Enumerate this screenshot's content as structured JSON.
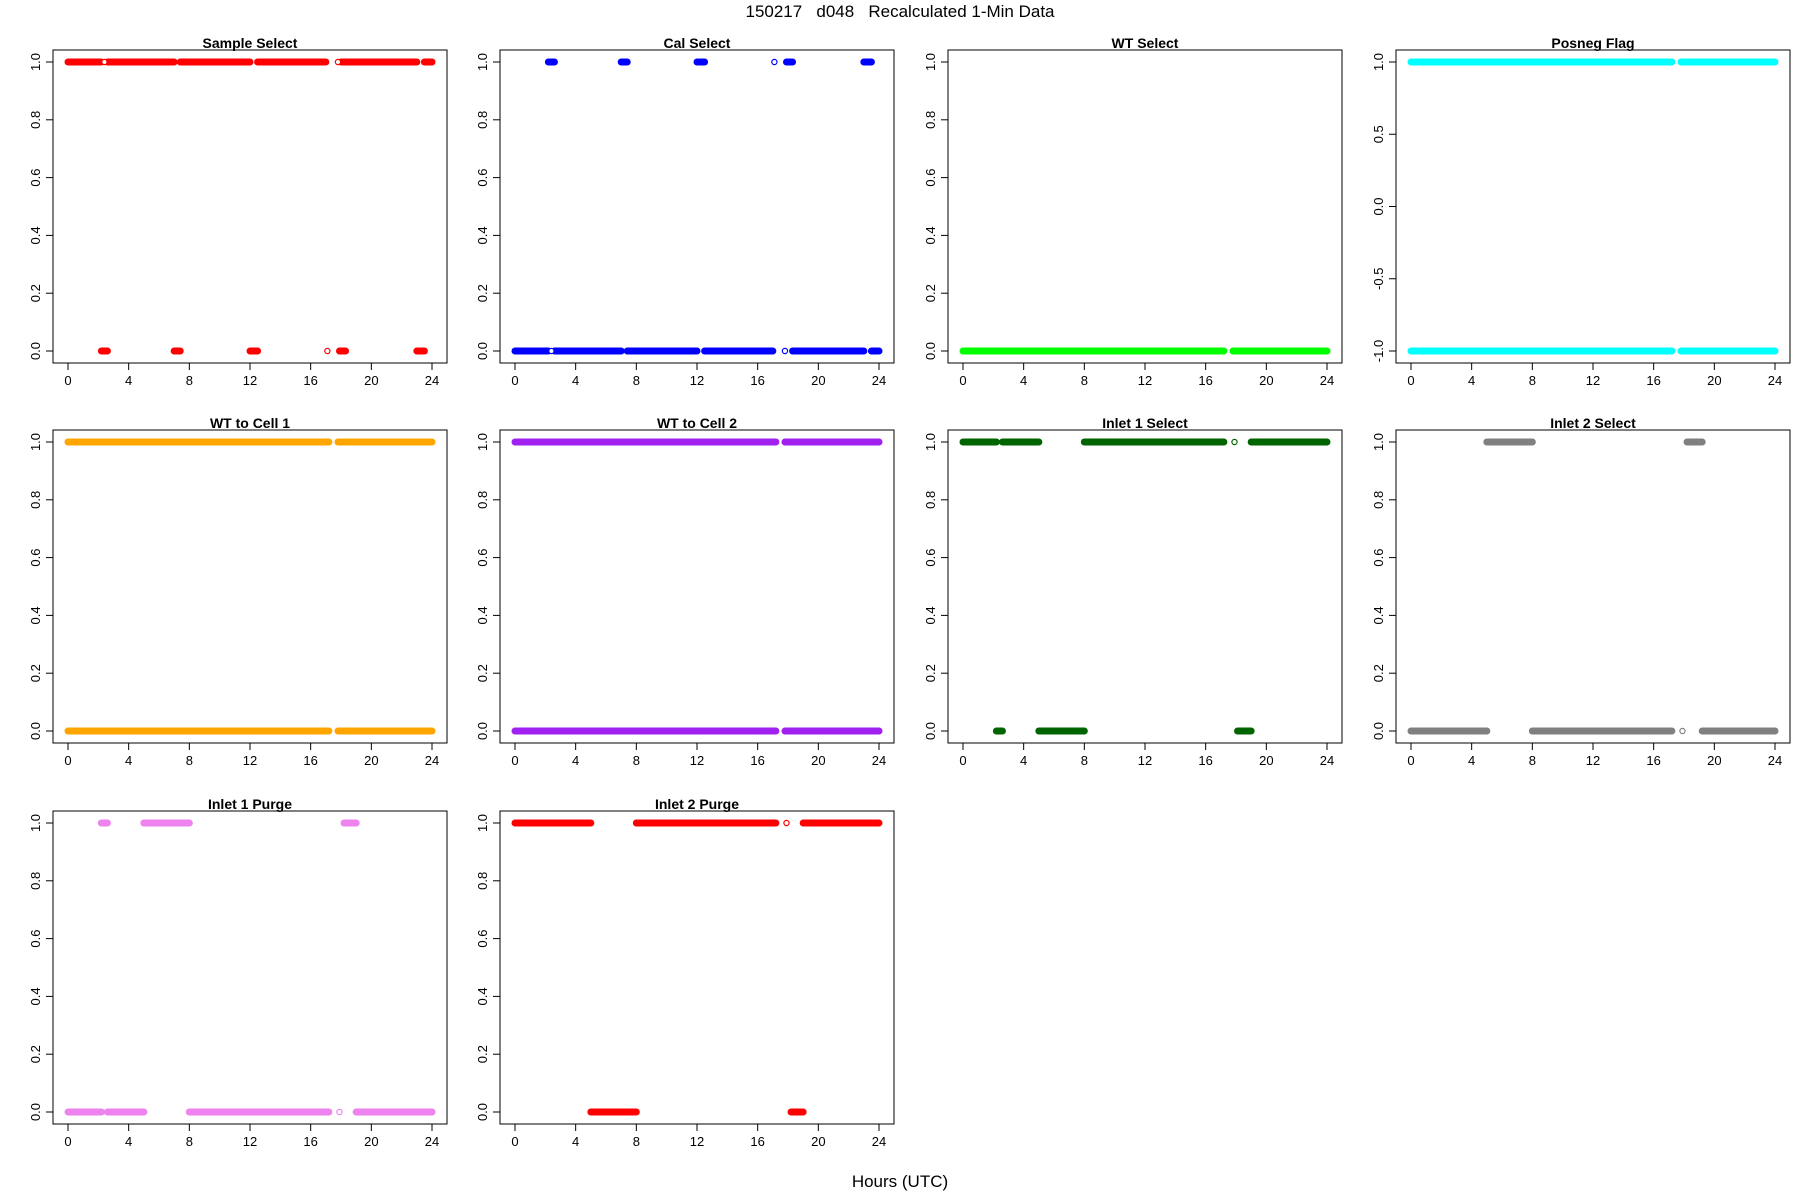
{
  "header": {
    "title": "150217   d048   Recalculated 1-Min Data"
  },
  "xaxis": {
    "title": "Hours (UTC)"
  },
  "chart_data": [
    {
      "title": "Sample Select",
      "type": "scatter",
      "color": "#ff0000",
      "xlim": [
        0,
        24
      ],
      "ylim": [
        0,
        1
      ],
      "x_ticks": [
        0,
        4,
        8,
        12,
        16,
        20,
        24
      ],
      "y_ticks": [
        "0.0",
        "0.2",
        "0.4",
        "0.6",
        "0.8",
        "1.0"
      ],
      "segments": [
        {
          "y": 1,
          "x": [
            [
              0.0,
              2.2
            ],
            [
              2.6,
              7.0
            ],
            [
              7.4,
              12.0
            ],
            [
              12.5,
              17.0
            ],
            [
              18.0,
              23.0
            ],
            [
              23.5,
              24.0
            ]
          ]
        },
        {
          "y": 0,
          "x": [
            [
              2.2,
              2.6
            ],
            [
              7.0,
              7.4
            ],
            [
              12.0,
              12.5
            ],
            [
              17.9,
              18.3
            ],
            [
              23.0,
              23.5
            ]
          ]
        }
      ],
      "open_points": [
        {
          "x": 2.4,
          "y": 1
        },
        {
          "x": 17.1,
          "y": 0
        },
        {
          "x": 17.8,
          "y": 1
        }
      ]
    },
    {
      "title": "Cal Select",
      "type": "scatter",
      "color": "#0000ff",
      "xlim": [
        0,
        24
      ],
      "ylim": [
        0,
        1
      ],
      "x_ticks": [
        0,
        4,
        8,
        12,
        16,
        20,
        24
      ],
      "y_ticks": [
        "0.0",
        "0.2",
        "0.4",
        "0.6",
        "0.8",
        "1.0"
      ],
      "segments": [
        {
          "y": 1,
          "x": [
            [
              2.2,
              2.6
            ],
            [
              7.0,
              7.4
            ],
            [
              12.0,
              12.5
            ],
            [
              17.9,
              18.3
            ],
            [
              23.0,
              23.5
            ]
          ]
        },
        {
          "y": 0,
          "x": [
            [
              0.0,
              2.2
            ],
            [
              2.6,
              7.0
            ],
            [
              7.4,
              12.0
            ],
            [
              12.5,
              17.0
            ],
            [
              18.3,
              23.0
            ],
            [
              23.5,
              24.0
            ]
          ]
        }
      ],
      "open_points": [
        {
          "x": 2.4,
          "y": 0
        },
        {
          "x": 17.1,
          "y": 1
        },
        {
          "x": 17.8,
          "y": 0
        }
      ]
    },
    {
      "title": "WT Select",
      "type": "scatter",
      "color": "#00ff00",
      "xlim": [
        0,
        24
      ],
      "ylim": [
        0,
        1
      ],
      "x_ticks": [
        0,
        4,
        8,
        12,
        16,
        20,
        24
      ],
      "y_ticks": [
        "0.0",
        "0.2",
        "0.4",
        "0.6",
        "0.8",
        "1.0"
      ],
      "segments": [
        {
          "y": 0,
          "x": [
            [
              0.0,
              17.2
            ],
            [
              17.8,
              24.0
            ]
          ]
        }
      ],
      "open_points": []
    },
    {
      "title": "Posneg Flag",
      "type": "scatter",
      "color": "#00ffff",
      "xlim": [
        0,
        24
      ],
      "ylim": [
        -1,
        1
      ],
      "x_ticks": [
        0,
        4,
        8,
        12,
        16,
        20,
        24
      ],
      "y_ticks": [
        "-1.0",
        "-0.5",
        "0.0",
        "0.5",
        "1.0"
      ],
      "segments": [
        {
          "y": 1,
          "x": [
            [
              0.0,
              17.2
            ],
            [
              17.8,
              24.0
            ]
          ]
        },
        {
          "y": -1,
          "x": [
            [
              0.0,
              17.2
            ],
            [
              17.8,
              24.0
            ]
          ]
        }
      ],
      "open_points": []
    },
    {
      "title": "WT to Cell 1",
      "type": "scatter",
      "color": "#ffa500",
      "xlim": [
        0,
        24
      ],
      "ylim": [
        0,
        1
      ],
      "x_ticks": [
        0,
        4,
        8,
        12,
        16,
        20,
        24
      ],
      "y_ticks": [
        "0.0",
        "0.2",
        "0.4",
        "0.6",
        "0.8",
        "1.0"
      ],
      "segments": [
        {
          "y": 1,
          "x": [
            [
              0.0,
              17.2
            ],
            [
              17.8,
              24.0
            ]
          ]
        },
        {
          "y": 0,
          "x": [
            [
              0.0,
              17.2
            ],
            [
              17.8,
              24.0
            ]
          ]
        }
      ],
      "open_points": []
    },
    {
      "title": "WT to Cell 2",
      "type": "scatter",
      "color": "#a020f0",
      "xlim": [
        0,
        24
      ],
      "ylim": [
        0,
        1
      ],
      "x_ticks": [
        0,
        4,
        8,
        12,
        16,
        20,
        24
      ],
      "y_ticks": [
        "0.0",
        "0.2",
        "0.4",
        "0.6",
        "0.8",
        "1.0"
      ],
      "segments": [
        {
          "y": 1,
          "x": [
            [
              0.0,
              17.2
            ],
            [
              17.8,
              24.0
            ]
          ]
        },
        {
          "y": 0,
          "x": [
            [
              0.0,
              17.2
            ],
            [
              17.8,
              24.0
            ]
          ]
        }
      ],
      "open_points": []
    },
    {
      "title": "Inlet 1 Select",
      "type": "scatter",
      "color": "#006400",
      "xlim": [
        0,
        24
      ],
      "ylim": [
        0,
        1
      ],
      "x_ticks": [
        0,
        4,
        8,
        12,
        16,
        20,
        24
      ],
      "y_ticks": [
        "0.0",
        "0.2",
        "0.4",
        "0.6",
        "0.8",
        "1.0"
      ],
      "segments": [
        {
          "y": 1,
          "x": [
            [
              0.0,
              2.2
            ],
            [
              2.6,
              5.0
            ],
            [
              8.0,
              17.2
            ],
            [
              19.0,
              24.0
            ]
          ]
        },
        {
          "y": 0,
          "x": [
            [
              2.2,
              2.6
            ],
            [
              5.0,
              8.0
            ],
            [
              18.1,
              19.0
            ]
          ]
        }
      ],
      "open_points": [
        {
          "x": 17.9,
          "y": 1
        }
      ]
    },
    {
      "title": "Inlet 2 Select",
      "type": "scatter",
      "color": "#808080",
      "xlim": [
        0,
        24
      ],
      "ylim": [
        0,
        1
      ],
      "x_ticks": [
        0,
        4,
        8,
        12,
        16,
        20,
        24
      ],
      "y_ticks": [
        "0.0",
        "0.2",
        "0.4",
        "0.6",
        "0.8",
        "1.0"
      ],
      "segments": [
        {
          "y": 1,
          "x": [
            [
              5.0,
              8.0
            ],
            [
              18.2,
              19.2
            ]
          ]
        },
        {
          "y": 0,
          "x": [
            [
              0.0,
              5.0
            ],
            [
              8.0,
              17.2
            ],
            [
              19.2,
              24.0
            ]
          ]
        }
      ],
      "open_points": [
        {
          "x": 17.9,
          "y": 0
        }
      ]
    },
    {
      "title": "Inlet 1 Purge",
      "type": "scatter",
      "color": "#ee82ee",
      "xlim": [
        0,
        24
      ],
      "ylim": [
        0,
        1
      ],
      "x_ticks": [
        0,
        4,
        8,
        12,
        16,
        20,
        24
      ],
      "y_ticks": [
        "0.0",
        "0.2",
        "0.4",
        "0.6",
        "0.8",
        "1.0"
      ],
      "segments": [
        {
          "y": 1,
          "x": [
            [
              2.2,
              2.6
            ],
            [
              5.0,
              8.0
            ],
            [
              18.2,
              19.0
            ]
          ]
        },
        {
          "y": 0,
          "x": [
            [
              0.0,
              2.2
            ],
            [
              2.6,
              5.0
            ],
            [
              8.0,
              17.2
            ],
            [
              19.0,
              24.0
            ]
          ]
        }
      ],
      "open_points": [
        {
          "x": 17.9,
          "y": 0
        }
      ]
    },
    {
      "title": "Inlet 2 Purge",
      "type": "scatter",
      "color": "#ff0000",
      "xlim": [
        0,
        24
      ],
      "ylim": [
        0,
        1
      ],
      "x_ticks": [
        0,
        4,
        8,
        12,
        16,
        20,
        24
      ],
      "y_ticks": [
        "0.0",
        "0.2",
        "0.4",
        "0.6",
        "0.8",
        "1.0"
      ],
      "segments": [
        {
          "y": 1,
          "x": [
            [
              0.0,
              5.0
            ],
            [
              8.0,
              17.2
            ],
            [
              19.0,
              24.0
            ]
          ]
        },
        {
          "y": 0,
          "x": [
            [
              5.0,
              8.0
            ],
            [
              18.2,
              19.0
            ]
          ]
        }
      ],
      "open_points": [
        {
          "x": 17.9,
          "y": 1
        }
      ]
    }
  ]
}
